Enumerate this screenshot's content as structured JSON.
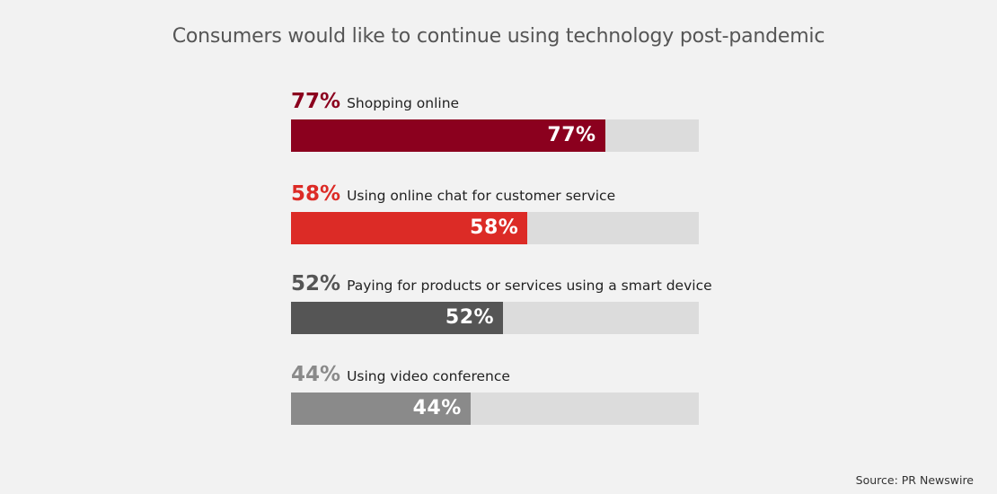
{
  "chart_data": {
    "type": "bar",
    "orientation": "horizontal",
    "title": "Consumers would like to continue using technology post-pandemic",
    "xlim": [
      0,
      100
    ],
    "grid": false,
    "bars": [
      {
        "value_label": "77%",
        "category": "Shopping online",
        "value": 77,
        "color": "#8b001e"
      },
      {
        "value_label": "58%",
        "category": "Using online chat for customer service",
        "value": 58,
        "color": "#dc2b26"
      },
      {
        "value_label": "52%",
        "category": "Paying for products or services using a smart device",
        "value": 52,
        "color": "#555555"
      },
      {
        "value_label": "44%",
        "category": "Using video conference",
        "value": 44,
        "color": "#8a8a8a"
      }
    ],
    "track_color": "#dcdcdc",
    "source": "Source: PR Newswire"
  }
}
